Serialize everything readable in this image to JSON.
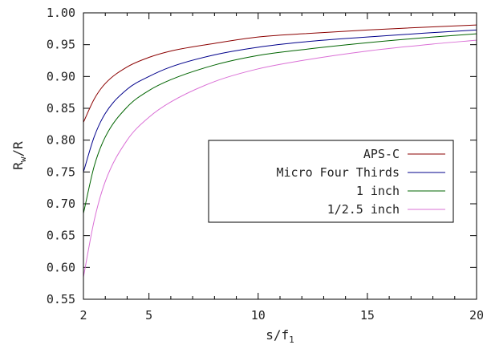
{
  "chart_data": {
    "type": "line",
    "xlabel": {
      "base": "s/f",
      "sub": "1"
    },
    "ylabel": {
      "base": "R",
      "sub": "w",
      "tail": "/R"
    },
    "xlim": [
      2,
      20
    ],
    "ylim": [
      0.55,
      1.0
    ],
    "xticks": [
      2,
      5,
      10,
      15,
      20
    ],
    "xtick_labels": [
      "2",
      "5",
      "10",
      "15",
      "20"
    ],
    "x_minor_ticks": [
      3,
      4,
      6,
      7,
      8,
      9,
      11,
      12,
      13,
      14,
      16,
      17,
      18,
      19
    ],
    "yticks": [
      0.55,
      0.6,
      0.65,
      0.7,
      0.75,
      0.8,
      0.85,
      0.9,
      0.95,
      1.0
    ],
    "ytick_labels": [
      "0.55",
      "0.60",
      "0.65",
      "0.70",
      "0.75",
      "0.80",
      "0.85",
      "0.90",
      "0.95",
      "1.00"
    ],
    "grid": false,
    "legend_position": "center-right",
    "series": [
      {
        "name": "APS-C",
        "color": "#8b0000",
        "x": [
          2,
          2.5,
          3,
          4,
          5,
          6,
          8,
          10,
          12,
          15,
          18,
          20
        ],
        "y": [
          0.828,
          0.865,
          0.889,
          0.915,
          0.93,
          0.94,
          0.952,
          0.962,
          0.967,
          0.973,
          0.978,
          0.981
        ]
      },
      {
        "name": "Micro Four Thirds",
        "color": "#00008b",
        "x": [
          2,
          2.5,
          3,
          4,
          5,
          6,
          8,
          10,
          12,
          15,
          18,
          20
        ],
        "y": [
          0.75,
          0.806,
          0.842,
          0.88,
          0.9,
          0.915,
          0.934,
          0.946,
          0.954,
          0.962,
          0.969,
          0.973
        ]
      },
      {
        "name": "1 inch",
        "color": "#006400",
        "x": [
          2,
          2.5,
          3,
          4,
          5,
          6,
          8,
          10,
          12,
          15,
          18,
          20
        ],
        "y": [
          0.685,
          0.76,
          0.805,
          0.852,
          0.878,
          0.895,
          0.918,
          0.933,
          0.942,
          0.953,
          0.962,
          0.967
        ]
      },
      {
        "name": "1/2.5 inch",
        "color": "#da70d6",
        "x": [
          2,
          2.5,
          3,
          4,
          5,
          6,
          8,
          10,
          12,
          15,
          18,
          20
        ],
        "y": [
          0.585,
          0.675,
          0.735,
          0.8,
          0.836,
          0.86,
          0.892,
          0.912,
          0.925,
          0.94,
          0.951,
          0.957
        ]
      }
    ]
  }
}
